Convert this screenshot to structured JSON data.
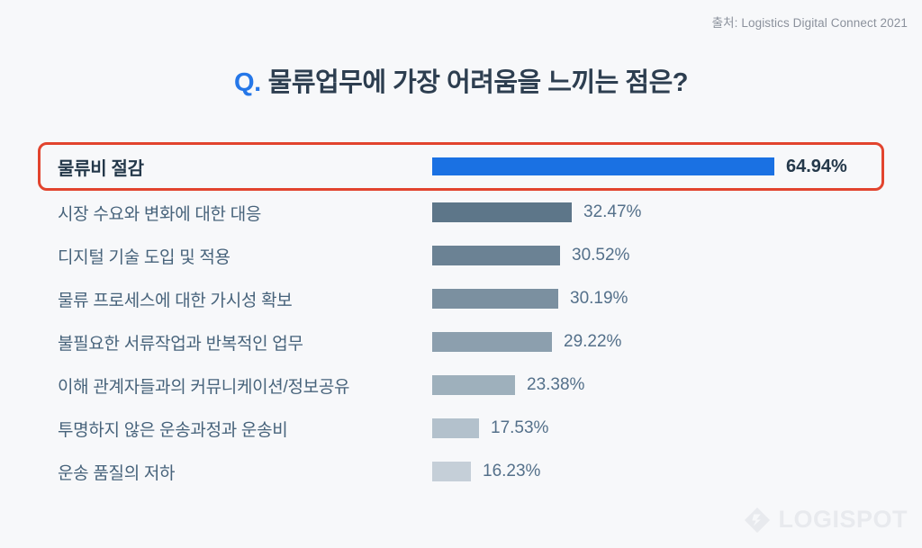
{
  "source": "출처: Logistics Digital Connect 2021",
  "title": {
    "prefix": "Q.",
    "text": "물류업무에 가장 어려움을 느끼는 점은?"
  },
  "logo": {
    "text": "LOGISPOT"
  },
  "colors": {
    "background": "#f7f8fa",
    "title_text": "#2d3e50",
    "title_q": "#2577e8",
    "highlight_border": "#e2442e",
    "highlight_bar": "#1a71e3",
    "label_text": "#47637b",
    "value_text": "#54708a",
    "source_text": "#8b919c",
    "logo_gray": "#e8eaee"
  },
  "chart_data": {
    "type": "bar",
    "orientation": "horizontal",
    "title": "Q. 물류업무에 가장 어려움을 느끼는 점은?",
    "source": "Logistics Digital Connect 2021",
    "categories": [
      "물류비 절감",
      "시장 수요와 변화에 대한 대응",
      "디지털 기술 도입 및 적용",
      "물류 프로세스에 대한 가시성 확보",
      "불필요한 서류작업과 반복적인 업무",
      "이해 관계자들과의 커뮤니케이션/정보공유",
      "투명하지 않은 운송과정과 운송비",
      "운송 품질의 저하"
    ],
    "values": [
      64.94,
      32.47,
      30.52,
      30.19,
      29.22,
      23.38,
      17.53,
      16.23
    ],
    "value_labels": [
      "64.94%",
      "32.47%",
      "30.52%",
      "30.19%",
      "29.22%",
      "23.38%",
      "17.53%",
      "16.23%"
    ],
    "bar_colors": [
      "#1a71e3",
      "#5d7689",
      "#6b8294",
      "#7b90a0",
      "#8c9fae",
      "#9eb0bc",
      "#b3c1cc",
      "#c5cfd8"
    ],
    "highlight_index": 0,
    "xlim": [
      10,
      66
    ],
    "grid": false,
    "legend": false,
    "value_label_position": "right-of-bar"
  }
}
